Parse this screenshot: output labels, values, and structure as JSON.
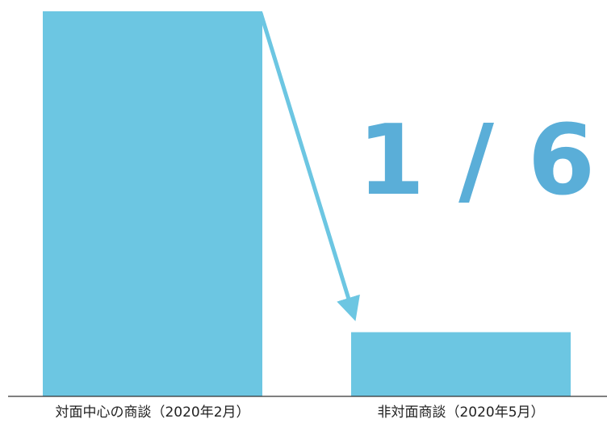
{
  "chart_data": {
    "type": "bar",
    "categories": [
      "対面中心の商談（2020年2月）",
      "非対面商談（2020年5月）"
    ],
    "values": [
      6,
      1
    ],
    "ylim": [
      0,
      6
    ],
    "grid": false,
    "legend": "none",
    "annotation": {
      "text": "1 / 6",
      "arrow_from": 0,
      "arrow_to": 1
    },
    "colors": {
      "bar": "#6cc6e2",
      "arrow": "#6cc6e2",
      "annotation": "#5aaed8",
      "axis": "#333333"
    }
  }
}
